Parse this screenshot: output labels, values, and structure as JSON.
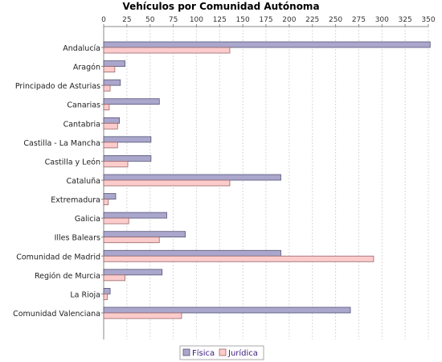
{
  "chart_data": {
    "type": "bar",
    "orientation": "horizontal",
    "title": "Vehículos por Comunidad Autónoma",
    "xlabel": "",
    "ylabel": "",
    "xlim": [
      0,
      350
    ],
    "ticks": [
      0,
      25,
      50,
      75,
      100,
      125,
      150,
      175,
      200,
      225,
      250,
      275,
      300,
      325,
      350
    ],
    "grid": true,
    "legend_position": "bottom",
    "categories": [
      "Andalucía",
      "Aragón",
      "Principado de Asturias",
      "Canarias",
      "Cantabria",
      "Castilla - La Mancha",
      "Castilla y León",
      "Cataluña",
      "Extremadura",
      "Galicia",
      "Illes Balears",
      "Comunidad de Madrid",
      "Región de Murcia",
      "La Rioja",
      "Comunidad Valenciana"
    ],
    "series": [
      {
        "name": "Física",
        "color": "#aaa6cc",
        "stroke": "#555577",
        "values": [
          352,
          23,
          18,
          60,
          17,
          51,
          51,
          191,
          13,
          68,
          88,
          191,
          63,
          7,
          266
        ]
      },
      {
        "name": "Jurídica",
        "color": "#fccccc",
        "stroke": "#996666",
        "values": [
          136,
          12,
          7,
          6,
          15,
          15,
          26,
          136,
          5,
          27,
          60,
          291,
          23,
          4,
          84
        ]
      }
    ]
  }
}
